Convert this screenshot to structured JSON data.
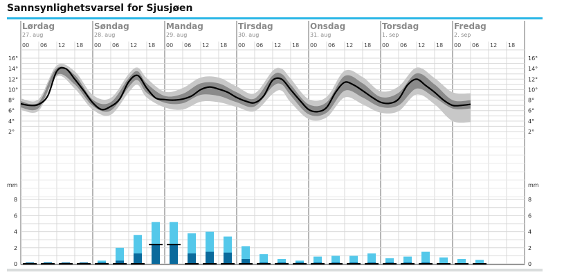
{
  "page": {
    "title": "Sannsynlighetsvarsel for Sjusjøen"
  },
  "colors": {
    "accent_bar": "#29b6e6",
    "band_outer": "#c8c8c8",
    "band_inner": "#8a8a8a",
    "median_line": "#000000",
    "precip_max": "#54c8ea",
    "precip_median": "#0a6a9c",
    "grid": "#d8d8d8",
    "day_divider": "#6e6e6e"
  },
  "days": [
    {
      "name": "Lørdag",
      "date": "27. aug",
      "hours": [
        "00",
        "06",
        "12",
        "18"
      ]
    },
    {
      "name": "Søndag",
      "date": "28. aug",
      "hours": [
        "00",
        "06",
        "12",
        "18"
      ]
    },
    {
      "name": "Mandag",
      "date": "29. aug",
      "hours": [
        "00",
        "06",
        "12",
        "18"
      ]
    },
    {
      "name": "Tirsdag",
      "date": "30. aug",
      "hours": [
        "00",
        "06",
        "12",
        "18"
      ]
    },
    {
      "name": "Onsdag",
      "date": "31. aug",
      "hours": [
        "00",
        "06",
        "12",
        "18"
      ]
    },
    {
      "name": "Torsdag",
      "date": "1. sep",
      "hours": [
        "00",
        "06",
        "12",
        "18"
      ]
    },
    {
      "name": "Fredag",
      "date": "2. sep",
      "hours": [
        "00",
        "06",
        "12",
        "18"
      ]
    }
  ],
  "chart_data": [
    {
      "type": "area",
      "title": "",
      "ylabel": "",
      "yticks": [
        "16°",
        "14°",
        "12°",
        "10°",
        "8°",
        "6°",
        "4°",
        "2°"
      ],
      "ylim": [
        0,
        17
      ],
      "x_unit": "hours from Lørdag 00",
      "series": [
        {
          "name": "",
          "role": "median",
          "x": [
            0,
            3,
            6,
            9,
            12,
            15,
            18,
            21,
            24,
            27,
            30,
            33,
            36,
            39,
            42,
            45,
            48,
            51,
            54,
            57,
            60,
            63,
            66,
            69,
            72,
            75,
            78,
            81,
            84,
            87,
            90,
            93,
            96,
            99,
            102,
            105,
            108,
            111,
            114,
            117,
            120,
            123,
            126,
            129,
            132,
            135,
            138,
            141,
            144,
            147,
            150
          ],
          "values": [
            7.3,
            7.0,
            7.2,
            8.8,
            13.5,
            14.0,
            12.0,
            9.8,
            7.5,
            6.2,
            6.8,
            8.2,
            11.5,
            12.7,
            10.3,
            8.4,
            8.1,
            8.0,
            8.2,
            8.8,
            10.0,
            10.5,
            10.1,
            9.5,
            8.5,
            7.8,
            7.5,
            8.8,
            11.8,
            12.0,
            10.0,
            8.0,
            6.2,
            5.8,
            6.6,
            9.5,
            11.4,
            10.9,
            9.8,
            8.6,
            7.6,
            7.4,
            8.2,
            10.9,
            12.0,
            10.8,
            9.5,
            8.0,
            7.0,
            7.0,
            7.2
          ]
        },
        {
          "name": "",
          "role": "inner-band",
          "x": [
            0,
            6,
            12,
            18,
            24,
            30,
            36,
            39,
            42,
            48,
            54,
            60,
            66,
            72,
            78,
            84,
            87,
            90,
            96,
            102,
            108,
            114,
            120,
            126,
            132,
            138,
            144,
            150
          ],
          "low": [
            6.6,
            6.5,
            12.8,
            11.0,
            6.9,
            6.0,
            10.5,
            11.8,
            9.4,
            7.5,
            7.4,
            9.0,
            8.8,
            7.6,
            6.8,
            10.6,
            11.0,
            8.9,
            5.3,
            5.6,
            9.8,
            8.5,
            6.7,
            7.0,
            10.2,
            8.5,
            6.4,
            6.4
          ],
          "high": [
            7.8,
            7.6,
            14.1,
            12.8,
            8.1,
            7.6,
            12.2,
            13.5,
            11.2,
            8.8,
            9.2,
            11.2,
            11.2,
            9.5,
            8.3,
            12.7,
            13.0,
            11.0,
            7.2,
            7.6,
            12.6,
            11.2,
            8.6,
            9.4,
            13.1,
            11.0,
            8.0,
            8.0
          ]
        },
        {
          "name": "",
          "role": "outer-band",
          "x": [
            0,
            6,
            12,
            18,
            24,
            30,
            36,
            39,
            42,
            48,
            54,
            60,
            66,
            72,
            78,
            84,
            87,
            90,
            96,
            102,
            108,
            114,
            120,
            126,
            132,
            138,
            144,
            150
          ],
          "low": [
            6.2,
            6.0,
            12.5,
            10.2,
            6.2,
            5.2,
            9.5,
            10.9,
            8.5,
            6.6,
            6.2,
            7.7,
            7.6,
            6.7,
            5.9,
            9.2,
            9.8,
            7.6,
            4.4,
            4.7,
            8.5,
            7.2,
            5.6,
            5.9,
            9.1,
            7.2,
            4.0,
            3.8
          ],
          "high": [
            8.3,
            8.2,
            14.6,
            13.5,
            9.0,
            8.4,
            13.0,
            14.2,
            12.2,
            9.6,
            10.3,
            12.3,
            12.3,
            10.6,
            9.3,
            13.6,
            14.0,
            12.1,
            8.2,
            8.6,
            13.6,
            12.4,
            9.7,
            10.6,
            14.2,
            12.2,
            9.5,
            9.3
          ]
        }
      ]
    },
    {
      "type": "bar",
      "title": "",
      "ylabel": "mm",
      "yticks": [
        "8",
        "6",
        "4",
        "2",
        "0"
      ],
      "ylim": [
        0,
        8
      ],
      "x_unit": "hours from Lørdag 00 (6-hour periods)",
      "categories": [
        0,
        6,
        12,
        18,
        24,
        30,
        36,
        42,
        48,
        54,
        60,
        66,
        72,
        78,
        84,
        90,
        96,
        102,
        108,
        114,
        120,
        126,
        132,
        138,
        144,
        150
      ],
      "series": [
        {
          "name": "",
          "role": "max",
          "values": [
            0.1,
            0.2,
            0.1,
            0.1,
            0.4,
            2.0,
            3.6,
            5.2,
            5.2,
            3.8,
            4.0,
            3.4,
            2.2,
            1.2,
            0.6,
            0.4,
            0.9,
            1.0,
            1.0,
            1.3,
            0.7,
            0.9,
            1.5,
            0.8,
            0.6,
            0.5
          ]
        },
        {
          "name": "",
          "role": "median",
          "values": [
            0.1,
            0.1,
            0.1,
            0.1,
            0.1,
            0.4,
            1.3,
            2.4,
            2.4,
            1.3,
            1.5,
            1.4,
            0.6,
            0.1,
            0.1,
            0.1,
            0.1,
            0.1,
            0.1,
            0.1,
            0.1,
            0.1,
            0.1,
            0.0,
            0.0,
            0.0
          ]
        },
        {
          "name": "",
          "role": "min",
          "values": [
            0.0,
            0.0,
            0.0,
            0.0,
            0.0,
            0.0,
            0.0,
            2.4,
            2.4,
            0.0,
            0.0,
            0.0,
            0.0,
            0.0,
            0.0,
            0.0,
            0.0,
            0.0,
            0.0,
            0.0,
            0.0,
            0.0,
            0.0,
            0.0,
            0.0,
            0.0
          ]
        }
      ]
    }
  ]
}
